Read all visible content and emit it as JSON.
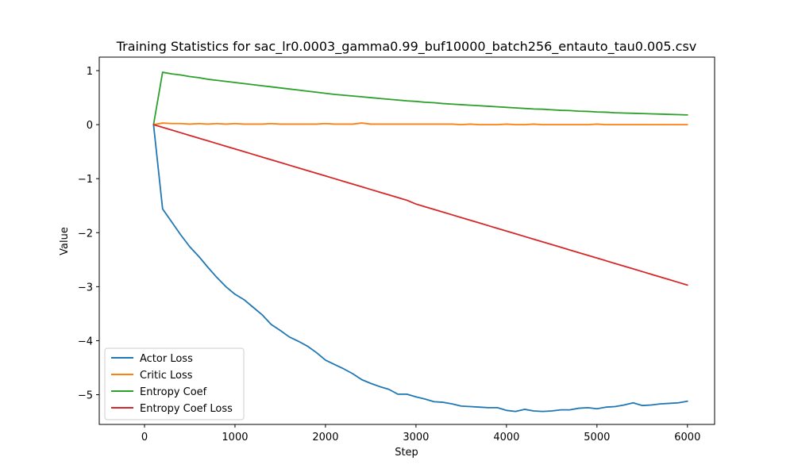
{
  "chart_data": {
    "type": "line",
    "title": "Training Statistics for sac_lr0.0003_gamma0.99_buf10000_batch256_entauto_tau0.005.csv",
    "xlabel": "Step",
    "ylabel": "Value",
    "xlim": [
      -500,
      6300
    ],
    "ylim": [
      -5.55,
      1.25
    ],
    "xticks": [
      0,
      1000,
      2000,
      3000,
      4000,
      5000,
      6000
    ],
    "yticks": [
      1,
      0,
      -1,
      -2,
      -3,
      -4,
      -5
    ],
    "xtick_labels": [
      "0",
      "1000",
      "2000",
      "3000",
      "4000",
      "5000",
      "6000"
    ],
    "ytick_labels": [
      "1",
      "0",
      "−1",
      "−2",
      "−3",
      "−4",
      "−5"
    ],
    "grid": false,
    "legend_position": "lower-left",
    "x": [
      100,
      200,
      300,
      400,
      500,
      600,
      700,
      800,
      900,
      1000,
      1100,
      1200,
      1300,
      1400,
      1500,
      1600,
      1700,
      1800,
      1900,
      2000,
      2100,
      2200,
      2300,
      2400,
      2500,
      2600,
      2700,
      2800,
      2900,
      3000,
      3100,
      3200,
      3300,
      3400,
      3500,
      3600,
      3700,
      3800,
      3900,
      4000,
      4100,
      4200,
      4300,
      4400,
      4500,
      4600,
      4700,
      4800,
      4900,
      5000,
      5100,
      5200,
      5300,
      5400,
      5500,
      5600,
      5700,
      5800,
      5900,
      6000
    ],
    "series": [
      {
        "name": "Actor Loss",
        "color": "#1f77b4",
        "values": [
          0,
          -1.56,
          -1.8,
          -2.04,
          -2.26,
          -2.44,
          -2.64,
          -2.83,
          -3.0,
          -3.14,
          -3.24,
          -3.38,
          -3.52,
          -3.7,
          -3.81,
          -3.93,
          -4.01,
          -4.1,
          -4.22,
          -4.36,
          -4.44,
          -4.52,
          -4.61,
          -4.72,
          -4.79,
          -4.85,
          -4.9,
          -4.99,
          -4.99,
          -5.04,
          -5.08,
          -5.13,
          -5.14,
          -5.17,
          -5.21,
          -5.22,
          -5.23,
          -5.24,
          -5.24,
          -5.29,
          -5.31,
          -5.27,
          -5.3,
          -5.31,
          -5.3,
          -5.28,
          -5.28,
          -5.25,
          -5.24,
          -5.26,
          -5.23,
          -5.22,
          -5.19,
          -5.15,
          -5.2,
          -5.19,
          -5.17,
          -5.16,
          -5.15,
          -5.12
        ]
      },
      {
        "name": "Critic Loss",
        "color": "#ff7f0e",
        "values": [
          0,
          0.03,
          0.02,
          0.02,
          0.01,
          0.02,
          0.01,
          0.02,
          0.01,
          0.02,
          0.01,
          0.01,
          0.01,
          0.02,
          0.01,
          0.01,
          0.01,
          0.01,
          0.01,
          0.02,
          0.01,
          0.01,
          0.01,
          0.03,
          0.01,
          0.01,
          0.01,
          0.01,
          0.01,
          0.01,
          0.01,
          0.01,
          0.01,
          0.01,
          0.0,
          0.01,
          0.0,
          0.0,
          0.0,
          0.01,
          0.0,
          0.0,
          0.01,
          0.0,
          0.0,
          0.0,
          0.0,
          0.0,
          0.0,
          0.01,
          0.0,
          0.0,
          0.0,
          0.0,
          0.0,
          0.0,
          0.0,
          0.0,
          0.0,
          0.0
        ]
      },
      {
        "name": "Entropy Coef",
        "color": "#2ca02c",
        "values": [
          0,
          0.97,
          0.94,
          0.92,
          0.89,
          0.87,
          0.84,
          0.82,
          0.8,
          0.78,
          0.76,
          0.74,
          0.72,
          0.7,
          0.68,
          0.66,
          0.64,
          0.62,
          0.6,
          0.58,
          0.56,
          0.545,
          0.53,
          0.515,
          0.5,
          0.485,
          0.47,
          0.455,
          0.44,
          0.43,
          0.415,
          0.405,
          0.39,
          0.38,
          0.37,
          0.36,
          0.35,
          0.34,
          0.33,
          0.32,
          0.31,
          0.3,
          0.29,
          0.285,
          0.275,
          0.265,
          0.26,
          0.25,
          0.245,
          0.235,
          0.23,
          0.22,
          0.215,
          0.21,
          0.205,
          0.2,
          0.195,
          0.19,
          0.185,
          0.18
        ]
      },
      {
        "name": "Entropy Coef Loss",
        "color": "#d62728",
        "values": [
          0,
          -0.05,
          -0.1,
          -0.15,
          -0.2,
          -0.25,
          -0.3,
          -0.35,
          -0.4,
          -0.45,
          -0.5,
          -0.55,
          -0.6,
          -0.65,
          -0.7,
          -0.75,
          -0.8,
          -0.85,
          -0.9,
          -0.95,
          -1.0,
          -1.05,
          -1.1,
          -1.15,
          -1.2,
          -1.25,
          -1.3,
          -1.35,
          -1.4,
          -1.47,
          -1.52,
          -1.57,
          -1.62,
          -1.67,
          -1.72,
          -1.77,
          -1.82,
          -1.87,
          -1.92,
          -1.97,
          -2.02,
          -2.07,
          -2.12,
          -2.17,
          -2.22,
          -2.27,
          -2.32,
          -2.37,
          -2.42,
          -2.47,
          -2.52,
          -2.57,
          -2.62,
          -2.67,
          -2.72,
          -2.77,
          -2.82,
          -2.87,
          -2.92,
          -2.97
        ]
      }
    ]
  }
}
